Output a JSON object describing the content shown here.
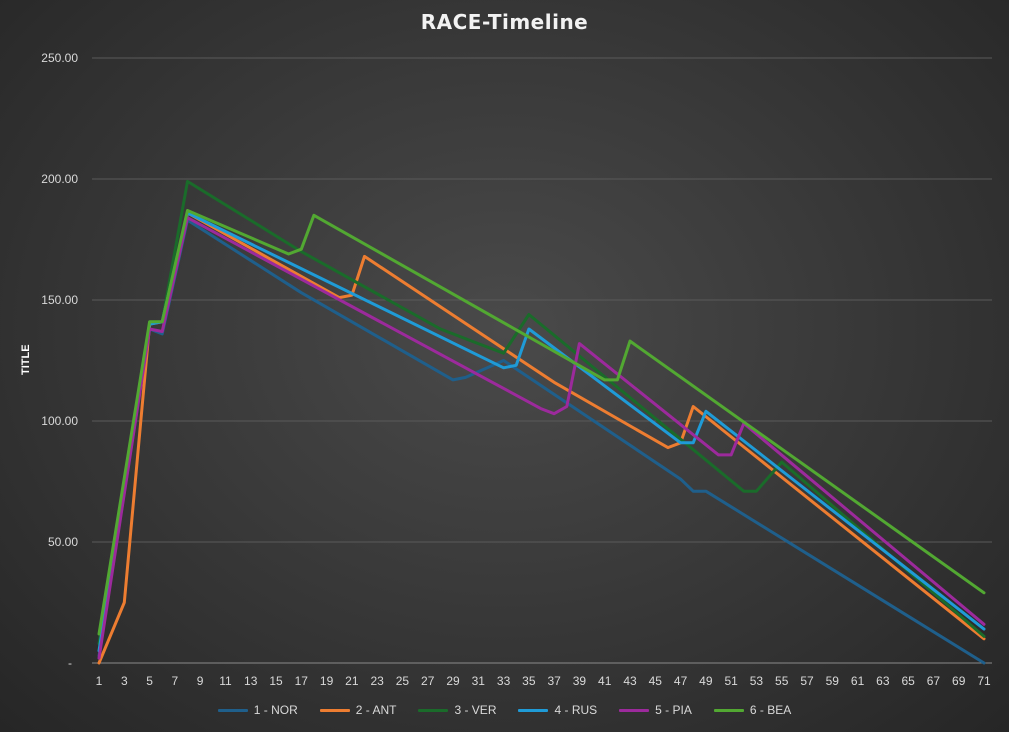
{
  "chart_data": {
    "type": "line",
    "title": "RACE-Timeline",
    "xlabel": "",
    "ylabel": "TITLE",
    "xlim": [
      1,
      71
    ],
    "ylim": [
      0,
      250
    ],
    "y_ticks": [
      "-",
      "50.00",
      "100.00",
      "150.00",
      "200.00",
      "250.00"
    ],
    "x_ticks": [
      1,
      3,
      5,
      7,
      9,
      11,
      13,
      15,
      17,
      19,
      21,
      23,
      25,
      27,
      29,
      31,
      33,
      35,
      37,
      39,
      41,
      43,
      45,
      47,
      49,
      51,
      53,
      55,
      57,
      59,
      61,
      63,
      65,
      67,
      69,
      71
    ],
    "grid": "horizontal",
    "legend": "bottom",
    "series": [
      {
        "name": "1 - NOR",
        "color": "#1f5f8b",
        "points": [
          [
            1,
            3
          ],
          [
            5,
            138
          ],
          [
            6,
            136
          ],
          [
            8,
            183
          ],
          [
            17,
            153
          ],
          [
            29,
            117
          ],
          [
            30,
            118
          ],
          [
            33,
            125
          ],
          [
            47,
            76
          ],
          [
            48,
            71
          ],
          [
            49,
            71
          ],
          [
            71,
            0
          ]
        ]
      },
      {
        "name": "2 - ANT",
        "color": "#ed7d31",
        "points": [
          [
            1,
            0
          ],
          [
            3,
            25
          ],
          [
            5,
            140
          ],
          [
            6,
            141
          ],
          [
            8,
            186
          ],
          [
            20,
            151
          ],
          [
            21,
            152
          ],
          [
            22,
            168
          ],
          [
            37,
            116
          ],
          [
            46,
            89
          ],
          [
            47,
            91
          ],
          [
            48,
            106
          ],
          [
            71,
            10
          ]
        ]
      },
      {
        "name": "3 - VER",
        "color": "#1a6b2a",
        "points": [
          [
            1,
            8
          ],
          [
            5,
            141
          ],
          [
            6,
            141
          ],
          [
            8,
            199
          ],
          [
            17,
            170
          ],
          [
            28,
            138
          ],
          [
            31,
            132
          ],
          [
            33,
            128
          ],
          [
            35,
            144
          ],
          [
            52,
            71
          ],
          [
            53,
            71
          ],
          [
            55,
            83
          ],
          [
            71,
            11
          ]
        ]
      },
      {
        "name": "4 - RUS",
        "color": "#1f9bd7",
        "points": [
          [
            1,
            5
          ],
          [
            5,
            140
          ],
          [
            6,
            141
          ],
          [
            8,
            186
          ],
          [
            33,
            122
          ],
          [
            34,
            123
          ],
          [
            35,
            138
          ],
          [
            47,
            91
          ],
          [
            48,
            91
          ],
          [
            49,
            104
          ],
          [
            71,
            14
          ]
        ]
      },
      {
        "name": "5 - PIA",
        "color": "#9c2a9c",
        "points": [
          [
            1,
            2
          ],
          [
            5,
            138
          ],
          [
            6,
            137
          ],
          [
            8,
            184
          ],
          [
            36,
            105
          ],
          [
            37,
            103
          ],
          [
            38,
            106
          ],
          [
            39,
            132
          ],
          [
            50,
            86
          ],
          [
            51,
            86
          ],
          [
            52,
            99
          ],
          [
            71,
            16
          ]
        ]
      },
      {
        "name": "6 - BEA",
        "color": "#52a832",
        "points": [
          [
            1,
            12
          ],
          [
            5,
            141
          ],
          [
            6,
            141
          ],
          [
            8,
            187
          ],
          [
            16,
            169
          ],
          [
            17,
            171
          ],
          [
            18,
            185
          ],
          [
            41,
            117
          ],
          [
            42,
            117
          ],
          [
            43,
            133
          ],
          [
            71,
            29
          ]
        ]
      }
    ]
  }
}
